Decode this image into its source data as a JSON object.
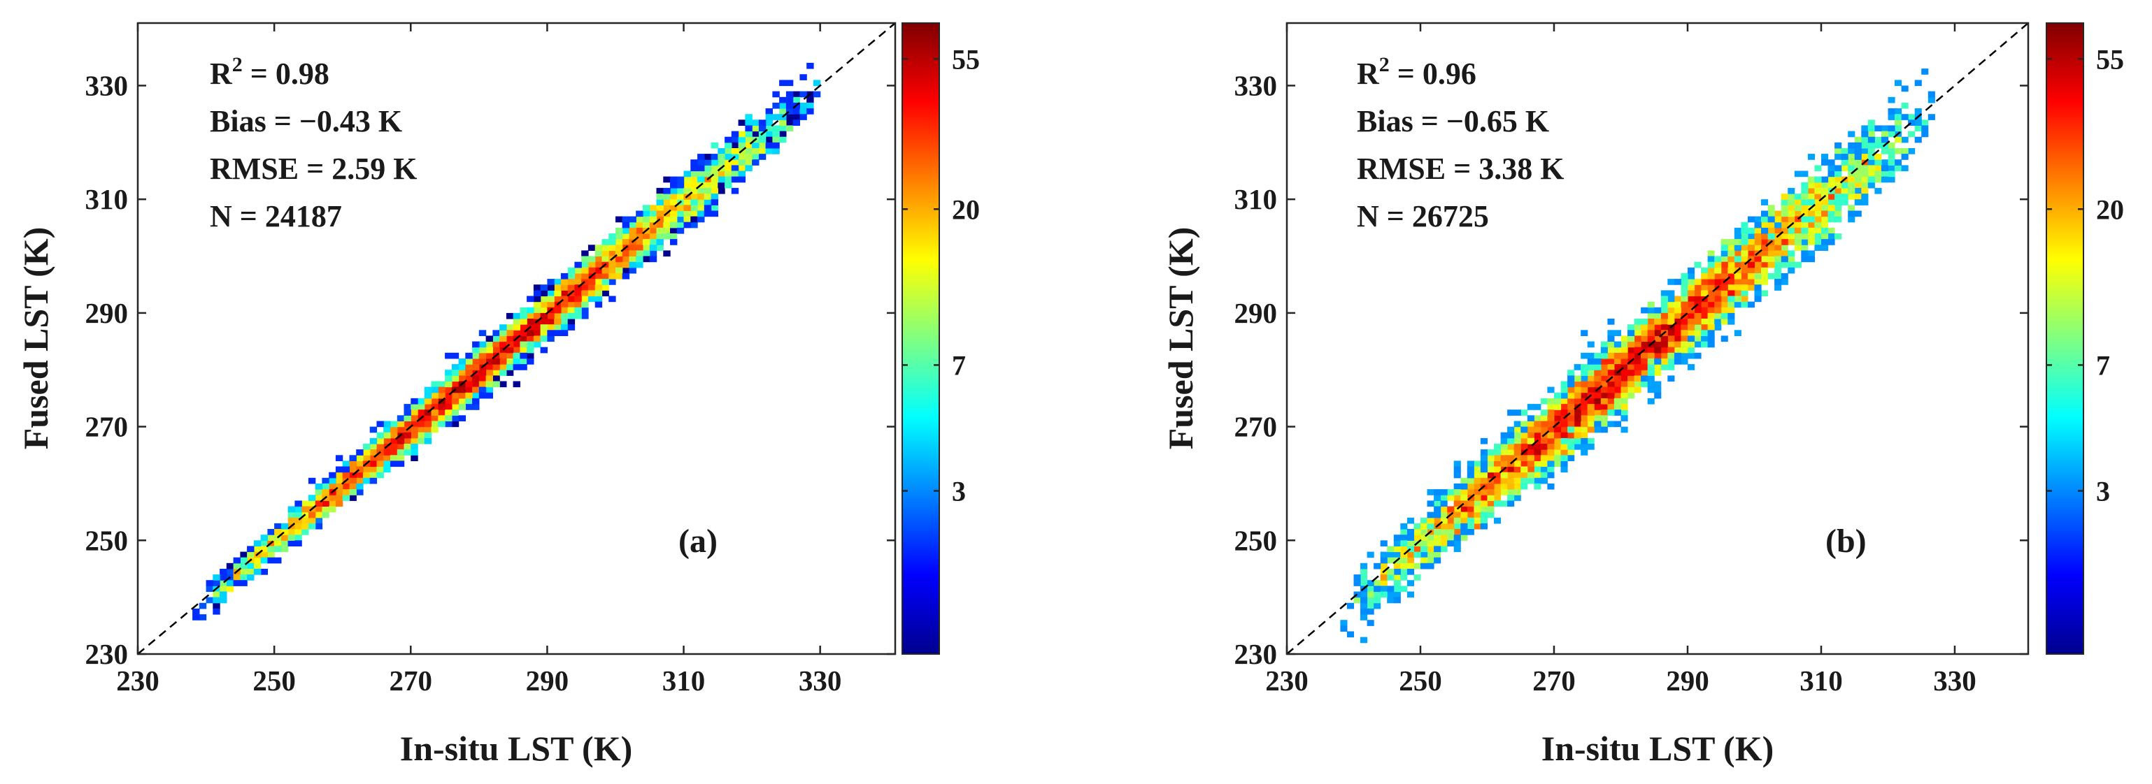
{
  "colors": {
    "colormap": [
      "#00008f",
      "#0000ff",
      "#0080ff",
      "#00ffff",
      "#80ff80",
      "#ffff00",
      "#ff8000",
      "#ff0000",
      "#800000"
    ],
    "identity_line": "#000000",
    "axis": "#262626"
  },
  "chart_data": [
    {
      "type": "heatmap",
      "panel_label": "(a)",
      "xlabel": "In-situ LST (K)",
      "ylabel": "Fused LST (K)",
      "xlim": [
        230,
        341
      ],
      "ylim": [
        230,
        341
      ],
      "x_ticks": [
        230,
        250,
        270,
        290,
        310,
        330
      ],
      "y_ticks": [
        230,
        250,
        270,
        290,
        310,
        330
      ],
      "stats": {
        "r2_label": "R",
        "r2_exp": "2",
        "r2_value": " = 0.98",
        "bias": "Bias = −0.43 K",
        "rmse": "RMSE = 2.59 K",
        "n": "N = 24187"
      },
      "density": {
        "x_start": 238,
        "x_end": 330,
        "bias_K": -0.43,
        "spread_K": [
          1.2,
          2.4
        ],
        "peak_count": 55,
        "peak_center_K": 268
      },
      "colorbar": {
        "scale": "log",
        "range": [
          1,
          70
        ],
        "ticks": [
          3,
          7,
          20,
          55
        ],
        "tick_labels": [
          "3",
          "7",
          "20",
          "55"
        ]
      }
    },
    {
      "type": "heatmap",
      "panel_label": "(b)",
      "xlabel": "In-situ LST (K)",
      "ylabel": "Fused LST (K)",
      "xlim": [
        230,
        341
      ],
      "ylim": [
        230,
        341
      ],
      "x_ticks": [
        230,
        250,
        270,
        290,
        310,
        330
      ],
      "y_ticks": [
        230,
        250,
        270,
        290,
        310,
        330
      ],
      "stats": {
        "r2_label": "R",
        "r2_exp": "2",
        "r2_value": " = 0.96",
        "bias": "Bias = −0.65 K",
        "rmse": "RMSE = 3.38 K",
        "n": "N = 26725"
      },
      "density": {
        "x_start": 238,
        "x_end": 327,
        "bias_K": -0.65,
        "spread_K": [
          2.6,
          3.4
        ],
        "peak_count": 55,
        "peak_center_K": 283
      },
      "colorbar": {
        "scale": "log",
        "range": [
          1,
          70
        ],
        "ticks": [
          3,
          7,
          20,
          55
        ],
        "tick_labels": [
          "3",
          "7",
          "20",
          "55"
        ]
      }
    }
  ]
}
